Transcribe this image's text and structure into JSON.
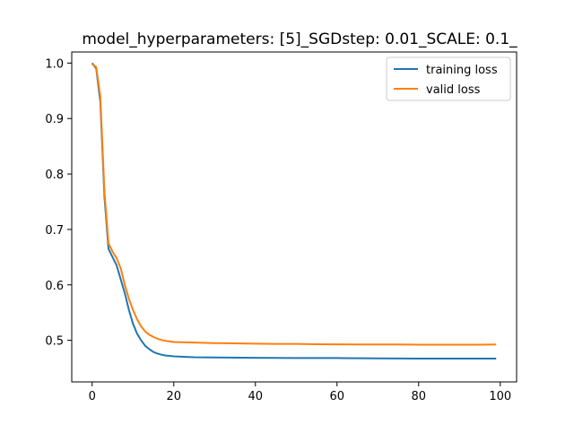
{
  "chart_data": {
    "type": "line",
    "title": "model_hyperparameters: [5]_SGDstep: 0.01_SCALE: 0.1_",
    "xlabel": "",
    "ylabel": "",
    "xlim": [
      -5,
      104
    ],
    "ylim": [
      0.425,
      1.02
    ],
    "x_ticks": [
      0,
      20,
      40,
      60,
      80,
      100
    ],
    "y_ticks": [
      0.5,
      0.6,
      0.7,
      0.8,
      0.9,
      1.0
    ],
    "x_tick_labels": [
      "0",
      "20",
      "40",
      "60",
      "80",
      "100"
    ],
    "y_tick_labels": [
      "0.5",
      "0.6",
      "0.7",
      "0.8",
      "0.9",
      "1.0"
    ],
    "grid": false,
    "legend_position": "top-right",
    "series": [
      {
        "name": "training loss",
        "color": "#1f77b4",
        "points": [
          [
            0,
            1.0
          ],
          [
            1,
            0.99
          ],
          [
            2,
            0.93
          ],
          [
            3,
            0.76
          ],
          [
            4,
            0.665
          ],
          [
            5,
            0.65
          ],
          [
            6,
            0.635
          ],
          [
            7,
            0.61
          ],
          [
            8,
            0.585
          ],
          [
            9,
            0.555
          ],
          [
            10,
            0.53
          ],
          [
            11,
            0.512
          ],
          [
            12,
            0.5
          ],
          [
            13,
            0.49
          ],
          [
            14,
            0.484
          ],
          [
            15,
            0.479
          ],
          [
            16,
            0.476
          ],
          [
            17,
            0.474
          ],
          [
            18,
            0.4725
          ],
          [
            19,
            0.4718
          ],
          [
            20,
            0.471
          ],
          [
            25,
            0.4695
          ],
          [
            30,
            0.469
          ],
          [
            40,
            0.4685
          ],
          [
            50,
            0.468
          ],
          [
            60,
            0.468
          ],
          [
            70,
            0.4675
          ],
          [
            80,
            0.467
          ],
          [
            90,
            0.467
          ],
          [
            99,
            0.467
          ]
        ]
      },
      {
        "name": "valid loss",
        "color": "#ff7f0e",
        "points": [
          [
            0,
            0.998
          ],
          [
            1,
            0.993
          ],
          [
            2,
            0.94
          ],
          [
            3,
            0.77
          ],
          [
            4,
            0.675
          ],
          [
            5,
            0.66
          ],
          [
            6,
            0.648
          ],
          [
            7,
            0.63
          ],
          [
            8,
            0.6
          ],
          [
            9,
            0.575
          ],
          [
            10,
            0.555
          ],
          [
            11,
            0.538
          ],
          [
            12,
            0.525
          ],
          [
            13,
            0.516
          ],
          [
            14,
            0.51
          ],
          [
            15,
            0.506
          ],
          [
            16,
            0.503
          ],
          [
            17,
            0.5005
          ],
          [
            18,
            0.499
          ],
          [
            19,
            0.498
          ],
          [
            20,
            0.497
          ],
          [
            22,
            0.4965
          ],
          [
            25,
            0.496
          ],
          [
            30,
            0.495
          ],
          [
            35,
            0.4945
          ],
          [
            40,
            0.494
          ],
          [
            45,
            0.4935
          ],
          [
            50,
            0.4935
          ],
          [
            55,
            0.493
          ],
          [
            60,
            0.4928
          ],
          [
            65,
            0.4925
          ],
          [
            70,
            0.4925
          ],
          [
            75,
            0.4925
          ],
          [
            80,
            0.4922
          ],
          [
            85,
            0.492
          ],
          [
            90,
            0.492
          ],
          [
            95,
            0.4922
          ],
          [
            99,
            0.4925
          ]
        ]
      }
    ]
  }
}
